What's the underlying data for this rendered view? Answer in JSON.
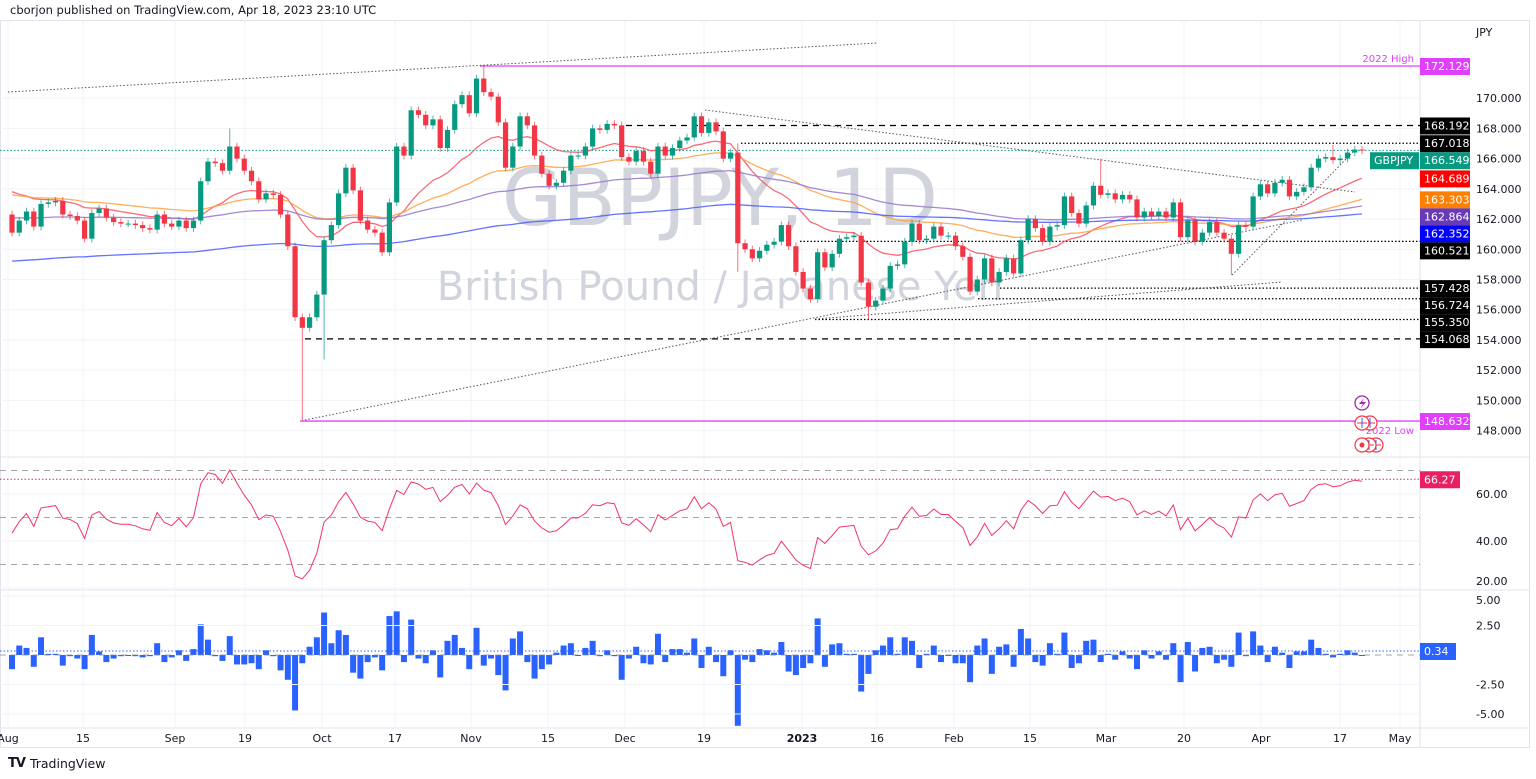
{
  "header": {
    "published": "cborjon published on TradingView.com, Apr 18, 2023 23:10 UTC"
  },
  "footer": {
    "logo_text": "TradingView"
  },
  "chart_data": {
    "type": "candlestick",
    "symbol_tag": "GBPJPY",
    "watermark_title": "GBPJPY, 1D",
    "watermark_subtitle": "British Pound / Japanese Yen",
    "currency": "JPY",
    "up_color": "#089981",
    "down_color": "#f23645",
    "first_open": 162.3,
    "closes": [
      161.1,
      161.9,
      162.5,
      161.5,
      163.0,
      163.1,
      163.2,
      162.3,
      162.2,
      161.9,
      160.7,
      162.4,
      162.7,
      162.1,
      161.8,
      161.7,
      161.7,
      161.6,
      161.4,
      161.3,
      162.3,
      161.7,
      161.5,
      161.9,
      161.4,
      161.9,
      164.5,
      165.8,
      165.7,
      165.2,
      166.8,
      166.0,
      165.2,
      164.5,
      163.3,
      163.7,
      163.6,
      162.3,
      160.2,
      155.5,
      154.8,
      155.5,
      157.0,
      160.6,
      161.6,
      163.7,
      165.4,
      163.9,
      161.9,
      161.3,
      161.1,
      159.8,
      163.1,
      166.8,
      166.2,
      169.2,
      168.9,
      168.2,
      168.6,
      166.7,
      167.9,
      169.6,
      170.2,
      169.0,
      171.3,
      170.4,
      170.1,
      168.4,
      165.4,
      166.8,
      168.8,
      168.2,
      166.2,
      165.0,
      164.2,
      164.4,
      165.2,
      166.2,
      166.2,
      166.8,
      168.0,
      167.9,
      168.3,
      168.2,
      166.1,
      165.8,
      166.5,
      165.8,
      165.0,
      166.8,
      166.2,
      166.7,
      167.2,
      167.4,
      168.8,
      167.7,
      168.4,
      167.8,
      166.0,
      166.4,
      160.4,
      160.0,
      159.4,
      159.9,
      160.3,
      160.5,
      161.6,
      160.2,
      158.5,
      157.4,
      156.7,
      159.8,
      158.8,
      159.7,
      160.7,
      160.8,
      160.9,
      157.8,
      156.2,
      156.6,
      157.4,
      158.9,
      159.0,
      160.5,
      161.7,
      160.6,
      160.7,
      161.5,
      160.9,
      160.9,
      160.2,
      159.5,
      157.2,
      158.0,
      159.4,
      157.8,
      158.5,
      159.4,
      158.4,
      160.6,
      162.0,
      161.4,
      160.5,
      161.5,
      161.6,
      163.5,
      162.4,
      161.7,
      162.9,
      164.2,
      163.6,
      163.7,
      163.3,
      163.6,
      163.3,
      162.1,
      162.5,
      162.2,
      162.5,
      162.1,
      163.1,
      160.8,
      161.9,
      160.5,
      161.1,
      161.8,
      161.1,
      160.7,
      159.7,
      161.6,
      161.5,
      163.5,
      164.3,
      163.7,
      164.4,
      164.6,
      163.5,
      163.8,
      164.1,
      165.4,
      166.0,
      166.1,
      165.9,
      166.0,
      166.4,
      166.6,
      166.549
    ],
    "wick_overrides": {
      "30": {
        "high": 168.0
      },
      "40": {
        "low": 148.632
      },
      "43": {
        "low": 152.7
      },
      "65": {
        "high": 172.129
      },
      "100": {
        "high": 167.0,
        "low": 158.5
      },
      "118": {
        "low": 155.35
      },
      "150": {
        "high": 166.0
      },
      "168": {
        "low": 158.3
      },
      "182": {
        "high": 166.9
      }
    },
    "price_ticks": [
      "170.000",
      "168.000",
      "166.000",
      "164.000",
      "162.000",
      "160.000",
      "158.000",
      "156.000",
      "154.000",
      "152.000",
      "150.000",
      "148.000"
    ],
    "time_ticks": [
      "Aug",
      "15",
      "Sep",
      "19",
      "Oct",
      "17",
      "Nov",
      "15",
      "Dec",
      "19",
      "2023",
      "16",
      "Feb",
      "15",
      "Mar",
      "20",
      "Apr",
      "17",
      "May"
    ],
    "levels": [
      {
        "value": "172.129",
        "label": "2022 High",
        "color": "#e040fb",
        "style": "solid"
      },
      {
        "value": "168.192",
        "color": "#000000",
        "style": "dashed"
      },
      {
        "value": "167.018",
        "color": "#000000",
        "style": "dotted"
      },
      {
        "value": "160.521",
        "color": "#000000",
        "style": "dotted"
      },
      {
        "value": "157.428",
        "color": "#000000",
        "style": "dotted"
      },
      {
        "value": "156.724",
        "color": "#000000",
        "style": "dotted"
      },
      {
        "value": "155.350",
        "color": "#000000",
        "style": "dotted"
      },
      {
        "value": "154.068",
        "color": "#000000",
        "style": "dashed"
      },
      {
        "value": "148.632",
        "label": "2022 Low",
        "color": "#e040fb",
        "style": "solid"
      }
    ],
    "last_price": {
      "value": "166.549",
      "color": "#089981"
    },
    "moving_averages": [
      {
        "value": "164.689",
        "color": "#ff0000",
        "line_color": "#f7525f"
      },
      {
        "value": "163.303",
        "color": "#ff7f00",
        "line_color": "#ffa040"
      },
      {
        "value": "162.864",
        "color": "#673ab7",
        "line_color": "#9575cd"
      },
      {
        "value": "162.352",
        "color": "#0000ff",
        "line_color": "#4a5cff"
      }
    ],
    "rsi": {
      "last": "66.27",
      "color": "#e91e63",
      "line_color": "#f23665",
      "ticks": [
        "60.00",
        "40.00",
        "20.00"
      ],
      "levels": [
        70,
        50,
        30
      ]
    },
    "histogram": {
      "last": "0.34",
      "color": "#2962ff",
      "ticks": [
        "5.00",
        "2.50",
        "-2.50",
        "-5.00"
      ]
    },
    "events": [
      "lightning-icon",
      "uk-flag-icon",
      "uk-flag-icon",
      "jp-flag-icon",
      "jp-flag-icon",
      "uk-flag-icon"
    ]
  }
}
